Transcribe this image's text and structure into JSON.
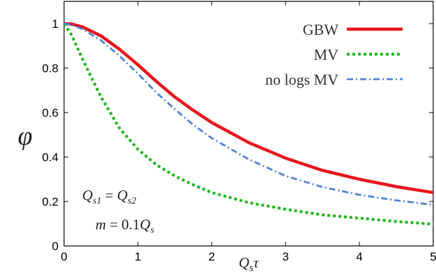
{
  "chart_data": {
    "type": "line",
    "xlabel": "Q_sτ",
    "ylabel": "φ",
    "xlim": [
      0,
      5
    ],
    "ylim": [
      0,
      1.1
    ],
    "xticks": [
      "0",
      "1",
      "2",
      "3",
      "4",
      "5"
    ],
    "yticks": [
      "0",
      "0.2",
      "0.4",
      "0.6",
      "0.8",
      "1"
    ],
    "legend_position": "top-right",
    "grid": false,
    "annotations": [
      "Q_s1 = Q_s2",
      "m = 0.1Q_s"
    ],
    "series": [
      {
        "name": "GBW",
        "style": "solid",
        "color": "#e8141c",
        "x": [
          0,
          0.1,
          0.25,
          0.5,
          0.75,
          1.0,
          1.25,
          1.5,
          1.75,
          2.0,
          2.5,
          3.0,
          3.5,
          4.0,
          4.5,
          5.0
        ],
        "y": [
          1.0,
          0.998,
          0.985,
          0.945,
          0.885,
          0.815,
          0.74,
          0.67,
          0.61,
          0.555,
          0.465,
          0.395,
          0.34,
          0.3,
          0.267,
          0.24
        ]
      },
      {
        "name": "MV",
        "style": "dotted",
        "color": "#1fb51f",
        "x": [
          0,
          0.1,
          0.25,
          0.5,
          0.75,
          1.0,
          1.25,
          1.5,
          1.75,
          2.0,
          2.5,
          3.0,
          3.5,
          4.0,
          4.5,
          5.0
        ],
        "y": [
          1.0,
          0.95,
          0.84,
          0.67,
          0.53,
          0.435,
          0.365,
          0.315,
          0.275,
          0.24,
          0.195,
          0.165,
          0.14,
          0.125,
          0.11,
          0.098
        ]
      },
      {
        "name": "no logs MV",
        "style": "dashdot",
        "color": "#4f82d9",
        "x": [
          0,
          0.1,
          0.25,
          0.5,
          0.75,
          1.0,
          1.25,
          1.5,
          1.75,
          2.0,
          2.5,
          3.0,
          3.5,
          4.0,
          4.5,
          5.0
        ],
        "y": [
          1.0,
          0.995,
          0.975,
          0.925,
          0.855,
          0.775,
          0.69,
          0.615,
          0.545,
          0.485,
          0.39,
          0.315,
          0.265,
          0.23,
          0.205,
          0.185
        ]
      }
    ]
  }
}
